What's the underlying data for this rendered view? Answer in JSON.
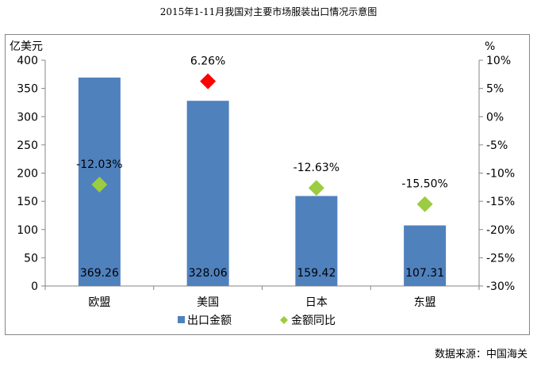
{
  "title": "2015年1-11月我国对主要市场服装出口情况示意图",
  "source": "数据来源：中国海关",
  "colors": {
    "bar": "#4f81bd",
    "marker": "#9bcc41",
    "highlight": "#ff0000",
    "axis": "#868686"
  },
  "chart_data": {
    "type": "bar",
    "categories": [
      "欧盟",
      "美国",
      "日本",
      "东盟"
    ],
    "series": [
      {
        "name": "出口金额",
        "type": "bar",
        "axis": "left",
        "values": [
          369.26,
          328.06,
          159.42,
          107.31
        ],
        "labels": [
          "369.26",
          "328.06",
          "159.42",
          "107.31"
        ]
      },
      {
        "name": "金额同比",
        "type": "scatter",
        "axis": "right",
        "values": [
          -12.03,
          6.26,
          -12.63,
          -15.5
        ],
        "labels": [
          "-12.03%",
          "6.26%",
          "-12.63%",
          "-15.50%"
        ]
      }
    ],
    "ylabel": "亿美元",
    "y2label": "%",
    "ylim": [
      0,
      400
    ],
    "y2lim": [
      -30,
      10
    ],
    "yticks": [
      "0",
      "50",
      "100",
      "150",
      "200",
      "250",
      "300",
      "350",
      "400"
    ],
    "y2ticks": [
      "-30%",
      "-25%",
      "-20%",
      "-15%",
      "-10%",
      "-5%",
      "0%",
      "5%",
      "10%"
    ],
    "legend_position": "bottom",
    "grid": false
  }
}
